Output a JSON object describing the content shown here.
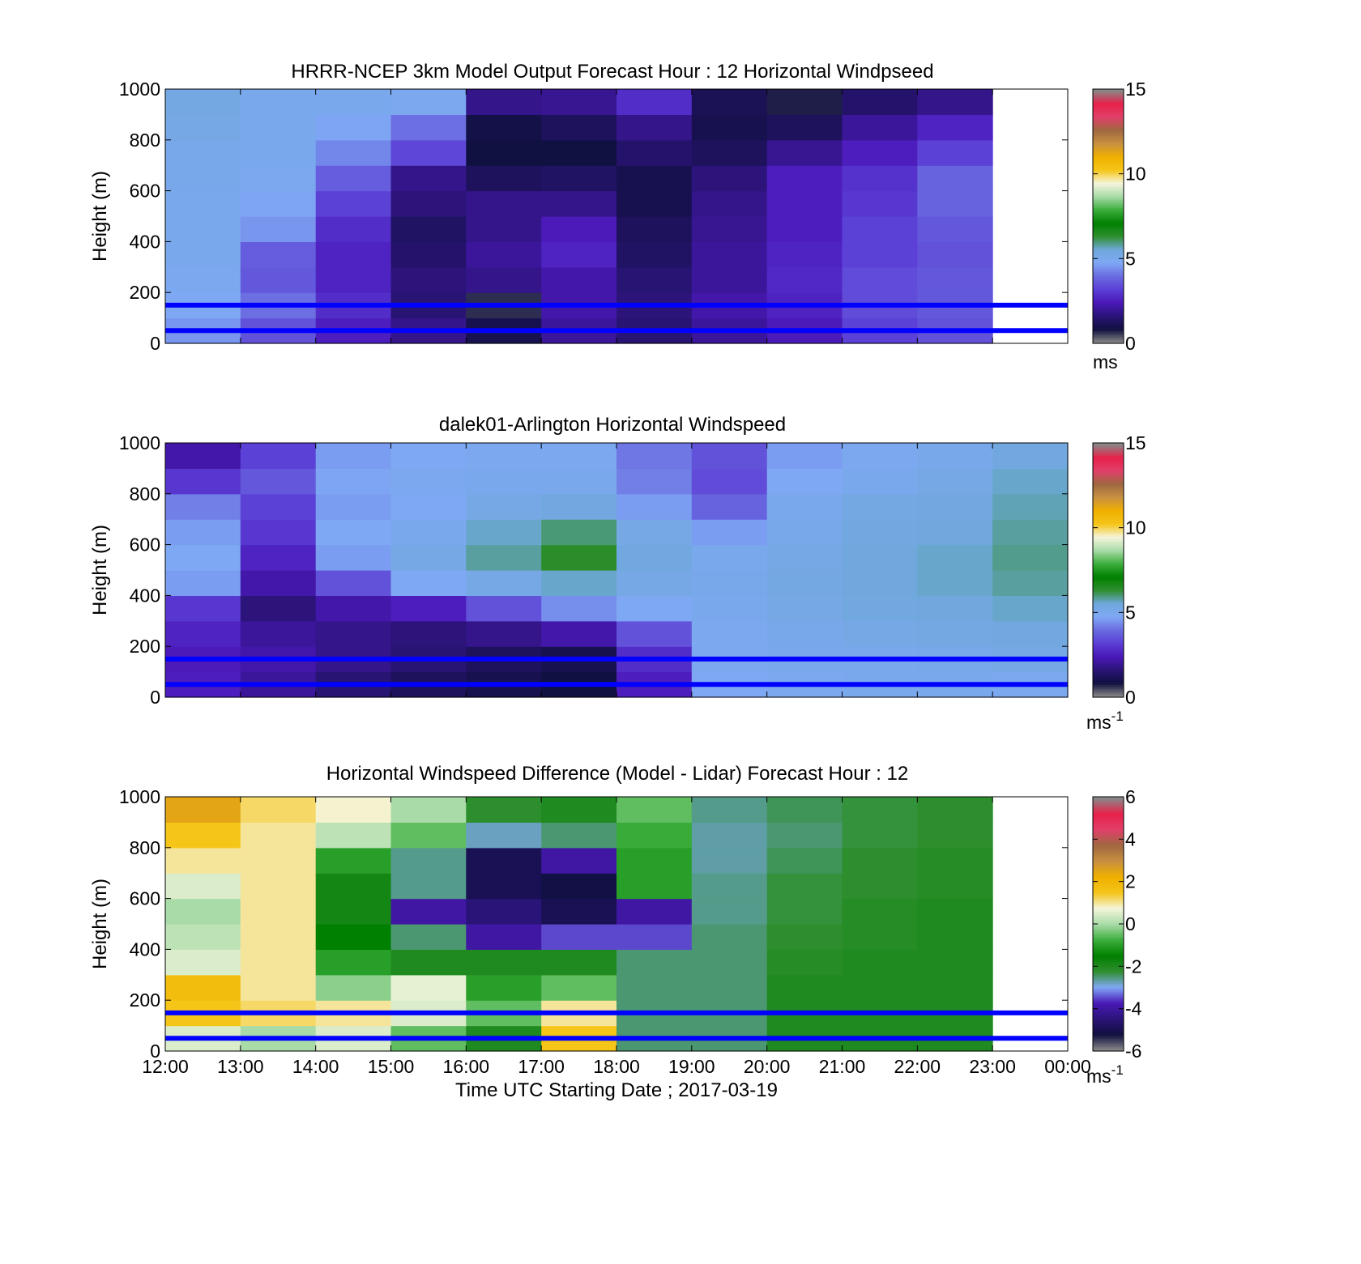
{
  "colors": {
    "reference_lines": "#0000ff",
    "speed_colormap": [
      "#888888",
      "#101040",
      "#2b1478",
      "#4a18b8",
      "#5b3fd6",
      "#6a6be0",
      "#7fa8f5",
      "#6fa8dc",
      "#2f8f2f",
      "#008000",
      "#3cae3c",
      "#a8dba8",
      "#f5f5dc",
      "#f5c518",
      "#f0b000",
      "#c89040",
      "#a06840",
      "#e0406a",
      "#e8204a",
      "#888888"
    ],
    "diff_colormap": [
      "#888888",
      "#101040",
      "#2b1478",
      "#4a18b8",
      "#7fa8f5",
      "#2f8f2f",
      "#008000",
      "#3cae3c",
      "#a8dba8",
      "#f5f5dc",
      "#f5c518",
      "#f0b000",
      "#c89040",
      "#a06840",
      "#e0406a",
      "#e8204a",
      "#888888"
    ]
  },
  "xaxis": {
    "tick_labels": [
      "12:00",
      "13:00",
      "14:00",
      "15:00",
      "16:00",
      "17:00",
      "18:00",
      "19:00",
      "20:00",
      "21:00",
      "22:00",
      "23:00",
      "00:00"
    ],
    "label": "Time UTC  Starting Date ; 2017-03-19"
  },
  "chart_data": [
    {
      "type": "heatmap",
      "title": "HRRR-NCEP 3km Model Output   Forecast Hour : 12 Horizontal Windpseed",
      "ylabel": "Height (m)",
      "ylim": [
        0,
        1000
      ],
      "yticks": [
        0,
        200,
        400,
        600,
        800,
        1000
      ],
      "x_hours": [
        12,
        13,
        14,
        15,
        16,
        17,
        18,
        19,
        20,
        21,
        22
      ],
      "height_levels_m": [
        50,
        150,
        250,
        350,
        450,
        550,
        650,
        750,
        850,
        950
      ],
      "values": [
        [
          4.5,
          3.5,
          2.5,
          1.8,
          1.0,
          2.0,
          1.5,
          2.0,
          2.4,
          3.2,
          3.5
        ],
        [
          4.8,
          4.0,
          2.8,
          1.5,
          0.6,
          2.2,
          1.6,
          2.2,
          2.6,
          3.4,
          3.6
        ],
        [
          4.9,
          3.6,
          2.6,
          1.6,
          1.8,
          2.2,
          1.5,
          2.0,
          2.7,
          3.4,
          3.6
        ],
        [
          5.0,
          3.7,
          2.6,
          1.4,
          2.0,
          2.6,
          1.3,
          2.0,
          2.6,
          3.2,
          3.5
        ],
        [
          5.0,
          4.5,
          2.8,
          1.3,
          1.8,
          2.4,
          1.2,
          1.9,
          2.5,
          3.2,
          3.6
        ],
        [
          5.0,
          4.7,
          3.2,
          1.6,
          1.8,
          1.8,
          1.0,
          1.8,
          2.5,
          3.0,
          3.8
        ],
        [
          5.1,
          4.9,
          3.7,
          1.8,
          1.2,
          1.3,
          1.0,
          1.6,
          2.5,
          2.9,
          3.8
        ],
        [
          5.1,
          5.0,
          4.3,
          3.3,
          0.8,
          0.8,
          1.4,
          1.2,
          1.9,
          2.5,
          3.2
        ],
        [
          5.2,
          5.0,
          4.7,
          4.0,
          0.9,
          1.2,
          1.8,
          1.0,
          1.2,
          2.0,
          2.6
        ],
        [
          5.3,
          5.0,
          5.0,
          4.9,
          1.8,
          1.9,
          2.8,
          1.1,
          0.7,
          1.4,
          1.8
        ]
      ],
      "clim": [
        0,
        15
      ],
      "colorbar_ticks": [
        0,
        5,
        10,
        15
      ],
      "colorbar_unit": "ms",
      "reference_lines_m": [
        50,
        150
      ]
    },
    {
      "type": "heatmap",
      "title": "dalek01-Arlington  Horizontal Windspeed",
      "ylabel": "Height (m)",
      "ylim": [
        0,
        1000
      ],
      "yticks": [
        0,
        200,
        400,
        600,
        800,
        1000
      ],
      "x_hours": [
        12,
        13,
        14,
        15,
        16,
        17,
        18,
        19,
        20,
        21,
        22,
        23
      ],
      "height_levels_m": [
        50,
        150,
        250,
        350,
        450,
        550,
        650,
        750,
        850,
        950
      ],
      "values": [
        [
          2.5,
          2.0,
          1.5,
          1.2,
          1.0,
          0.8,
          2.5,
          4.8,
          4.9,
          5.0,
          5.0,
          4.9
        ],
        [
          2.4,
          2.2,
          1.8,
          1.5,
          1.2,
          1.0,
          2.8,
          4.9,
          5.0,
          5.0,
          5.1,
          5.2
        ],
        [
          2.6,
          2.0,
          1.8,
          1.6,
          1.8,
          2.2,
          3.5,
          4.9,
          5.1,
          5.2,
          5.3,
          5.4
        ],
        [
          3.0,
          1.6,
          2.2,
          2.5,
          3.5,
          4.4,
          4.8,
          5.0,
          5.2,
          5.4,
          5.5,
          5.6
        ],
        [
          4.6,
          2.2,
          3.5,
          4.8,
          5.2,
          5.6,
          5.2,
          5.1,
          5.3,
          5.5,
          5.6,
          5.8
        ],
        [
          4.8,
          2.6,
          4.6,
          5.2,
          5.8,
          6.4,
          5.4,
          5.0,
          5.2,
          5.5,
          5.6,
          5.9
        ],
        [
          4.6,
          3.0,
          4.8,
          5.0,
          5.6,
          6.0,
          5.2,
          4.6,
          5.1,
          5.4,
          5.5,
          5.8
        ],
        [
          4.2,
          3.2,
          4.6,
          4.8,
          5.2,
          5.4,
          4.6,
          3.8,
          5.0,
          5.3,
          5.4,
          5.7
        ],
        [
          3.0,
          3.6,
          4.7,
          4.9,
          5.0,
          5.0,
          4.2,
          3.4,
          4.8,
          5.0,
          5.2,
          5.6
        ],
        [
          2.2,
          3.2,
          4.6,
          4.8,
          4.9,
          4.9,
          4.1,
          3.5,
          4.6,
          4.9,
          5.1,
          5.4
        ]
      ],
      "clim": [
        0,
        15
      ],
      "colorbar_ticks": [
        0,
        5,
        10,
        15
      ],
      "colorbar_unit": "ms",
      "colorbar_unit_exp": "-1",
      "reference_lines_m": [
        50,
        150
      ]
    },
    {
      "type": "heatmap",
      "title": "Horizontal Windspeed Difference (Model - Lidar) Forecast Hour : 12",
      "ylabel": "Height (m)",
      "ylim": [
        0,
        1000
      ],
      "yticks": [
        0,
        200,
        400,
        600,
        800,
        1000
      ],
      "x_hours": [
        12,
        13,
        14,
        15,
        16,
        17,
        18,
        19,
        20,
        21,
        22
      ],
      "height_levels_m": [
        50,
        150,
        250,
        350,
        450,
        550,
        650,
        750,
        850,
        950
      ],
      "values": [
        [
          0.5,
          0.0,
          0.5,
          -0.5,
          -2.0,
          1.5,
          -2.5,
          -2.5,
          -2.0,
          -2.0,
          -2.0
        ],
        [
          1.5,
          1.2,
          1.0,
          0.5,
          -0.5,
          1.0,
          -2.5,
          -2.5,
          -2.0,
          -2.0,
          -2.0
        ],
        [
          1.8,
          1.0,
          -0.2,
          0.6,
          -1.0,
          -0.5,
          -2.5,
          -2.5,
          -2.0,
          -2.0,
          -2.0
        ],
        [
          0.5,
          1.0,
          -1.0,
          -2.0,
          -2.0,
          -2.0,
          -2.5,
          -2.5,
          -2.1,
          -2.0,
          -2.0
        ],
        [
          0.2,
          1.0,
          -1.5,
          -2.5,
          -4.0,
          -3.5,
          -3.5,
          -2.5,
          -2.2,
          -2.1,
          -2.0
        ],
        [
          0.0,
          1.0,
          -1.8,
          -4.0,
          -4.5,
          -5.0,
          -4.0,
          -2.6,
          -2.3,
          -2.1,
          -2.0
        ],
        [
          0.5,
          1.0,
          -1.8,
          -2.6,
          -5.0,
          -5.2,
          -1.0,
          -2.6,
          -2.3,
          -2.2,
          -2.1
        ],
        [
          1.0,
          1.0,
          -1.0,
          -2.6,
          -5.0,
          -4.0,
          -1.0,
          -2.7,
          -2.4,
          -2.2,
          -2.1
        ],
        [
          1.5,
          1.0,
          0.2,
          -0.5,
          -2.8,
          -2.5,
          -0.8,
          -2.7,
          -2.5,
          -2.3,
          -2.2
        ],
        [
          2.5,
          1.2,
          0.8,
          0.0,
          -2.2,
          -2.0,
          -0.5,
          -2.6,
          -2.4,
          -2.3,
          -2.2
        ]
      ],
      "clim": [
        -6,
        6
      ],
      "colorbar_ticks": [
        -6,
        -4,
        -2,
        0,
        2,
        4,
        6
      ],
      "colorbar_unit": "ms",
      "colorbar_unit_exp": "-1",
      "reference_lines_m": [
        50,
        150
      ]
    }
  ]
}
